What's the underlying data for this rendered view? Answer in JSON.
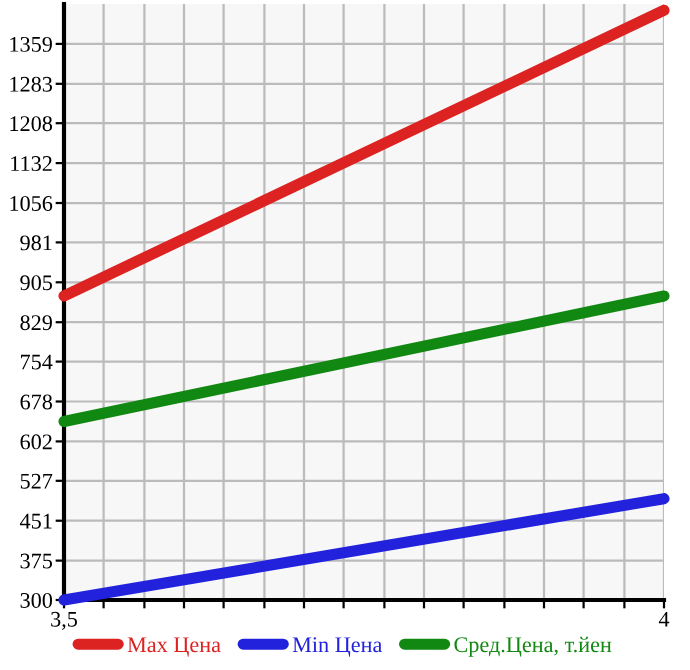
{
  "chart_data": {
    "type": "line",
    "x": [
      3.5,
      4
    ],
    "series": [
      {
        "name": "Max Цена",
        "color": "#dd2222",
        "values": [
          879,
          1423
        ]
      },
      {
        "name": "Min Цена",
        "color": "#2222dd",
        "values": [
          300,
          493
        ]
      },
      {
        "name": "Сред.Цена, т.йен",
        "color": "#118811",
        "values": [
          640,
          879
        ]
      }
    ],
    "xlim": [
      3.5,
      4
    ],
    "ylim": [
      300,
      1435
    ],
    "xticks": [
      {
        "value": 3.5,
        "label": "3,5"
      },
      {
        "value": 3.533,
        "label": null
      },
      {
        "value": 3.567,
        "label": null
      },
      {
        "value": 3.6,
        "label": null
      },
      {
        "value": 3.633,
        "label": null
      },
      {
        "value": 3.667,
        "label": null
      },
      {
        "value": 3.7,
        "label": null
      },
      {
        "value": 3.733,
        "label": null
      },
      {
        "value": 3.767,
        "label": null
      },
      {
        "value": 3.8,
        "label": null
      },
      {
        "value": 3.833,
        "label": null
      },
      {
        "value": 3.867,
        "label": null
      },
      {
        "value": 3.9,
        "label": null
      },
      {
        "value": 3.933,
        "label": null
      },
      {
        "value": 3.967,
        "label": null
      },
      4
    ],
    "yticks": [
      300,
      375,
      451,
      527,
      602,
      678,
      754,
      829,
      905,
      981,
      1056,
      1132,
      1208,
      1283,
      1359
    ],
    "grid": true,
    "legend": "bottom",
    "marker": "none",
    "line_style": "solid"
  }
}
